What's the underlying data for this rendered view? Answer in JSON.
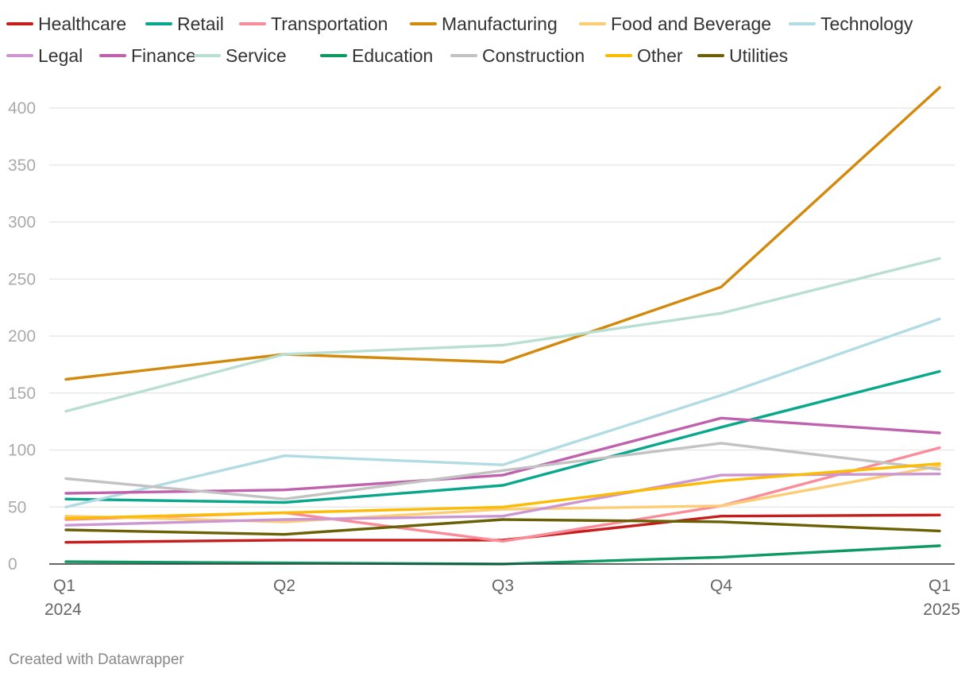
{
  "chart_data": {
    "type": "line",
    "title": "",
    "xlabel": "",
    "ylabel": "",
    "x": [
      "Q1 2024",
      "Q2 2024",
      "Q3 2024",
      "Q4 2024",
      "Q1 2025"
    ],
    "x_tick_labels": [
      {
        "line1": "Q1",
        "line2": "2024"
      },
      {
        "line1": "Q2",
        "line2": ""
      },
      {
        "line1": "Q3",
        "line2": ""
      },
      {
        "line1": "Q4",
        "line2": ""
      },
      {
        "line1": "Q1",
        "line2": "2025"
      }
    ],
    "ylim": [
      0,
      420
    ],
    "y_ticks": [
      0,
      50,
      100,
      150,
      200,
      250,
      300,
      350,
      400
    ],
    "grid": true,
    "legend_position": "top",
    "series": [
      {
        "name": "Healthcare",
        "color": "#c71e1d",
        "values": [
          19,
          21,
          21,
          42,
          43
        ]
      },
      {
        "name": "Retail",
        "color": "#09a88d",
        "values": [
          57,
          54,
          69,
          120,
          169
        ]
      },
      {
        "name": "Transportation",
        "color": "#fa8c9a",
        "values": [
          39,
          45,
          20,
          51,
          102
        ]
      },
      {
        "name": "Manufacturing",
        "color": "#d38a0c",
        "values": [
          162,
          184,
          177,
          243,
          418
        ]
      },
      {
        "name": "Food and Beverage",
        "color": "#fdcd76",
        "values": [
          42,
          37,
          48,
          51,
          86
        ]
      },
      {
        "name": "Technology",
        "color": "#b1dce4",
        "values": [
          50,
          95,
          87,
          148,
          215
        ]
      },
      {
        "name": "Legal",
        "color": "#cc96d3",
        "values": [
          34,
          39,
          42,
          78,
          79
        ]
      },
      {
        "name": "Finance",
        "color": "#c061ae",
        "values": [
          62,
          65,
          78,
          128,
          115
        ]
      },
      {
        "name": "Service",
        "color": "#b8dfd2",
        "values": [
          134,
          184,
          192,
          220,
          268
        ]
      },
      {
        "name": "Education",
        "color": "#0c9a62",
        "values": [
          2,
          1,
          0,
          6,
          16
        ]
      },
      {
        "name": "Construction",
        "color": "#c2c2c2",
        "values": [
          75,
          57,
          82,
          106,
          83
        ]
      },
      {
        "name": "Other",
        "color": "#fcbb05",
        "values": [
          40,
          45,
          50,
          73,
          88
        ]
      },
      {
        "name": "Utilities",
        "color": "#6a6107",
        "values": [
          30,
          26,
          39,
          37,
          29
        ]
      }
    ]
  },
  "footer": {
    "credit": "Created with Datawrapper"
  }
}
